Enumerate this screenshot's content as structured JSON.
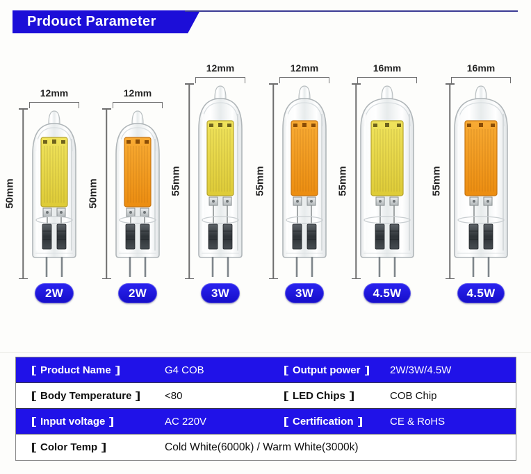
{
  "header": {
    "title": "Prdouct Parameter"
  },
  "bulbs": [
    {
      "width_label": "12mm",
      "height_label": "50mm",
      "watt_label": "2W",
      "tone": "cold"
    },
    {
      "width_label": "12mm",
      "height_label": "50mm",
      "watt_label": "2W",
      "tone": "warm"
    },
    {
      "width_label": "12mm",
      "height_label": "55mm",
      "watt_label": "3W",
      "tone": "cold"
    },
    {
      "width_label": "12mm",
      "height_label": "55mm",
      "watt_label": "3W",
      "tone": "warm"
    },
    {
      "width_label": "16mm",
      "height_label": "55mm",
      "watt_label": "4.5W",
      "tone": "cold"
    },
    {
      "width_label": "16mm",
      "height_label": "55mm",
      "watt_label": "4.5W",
      "tone": "warm"
    }
  ],
  "table": {
    "rows": [
      {
        "cells": [
          {
            "label": "【Product Name】",
            "value": "G4 COB"
          },
          {
            "label": "【Output power】",
            "value": "2W/3W/4.5W"
          }
        ]
      },
      {
        "cells": [
          {
            "label": "【Body Temperature】",
            "value": "<80"
          },
          {
            "label": "【LED Chips】",
            "value": "COB Chip"
          }
        ]
      },
      {
        "cells": [
          {
            "label": "【Input voltage】",
            "value": "AC 220V"
          },
          {
            "label": "【Certification】",
            "value": "CE & RoHS"
          }
        ]
      },
      {
        "cells": [
          {
            "label": "【Color Temp】",
            "value": "Cold White(6000k) / Warm White(3000k)"
          }
        ]
      }
    ]
  },
  "colors": {
    "header_blue": "#1c0ed8",
    "header_line": "#3b3b94",
    "table_blue": "#2012e8",
    "pill_blue_top": "#2b24f0",
    "pill_blue_bottom": "#150dc8",
    "cold": {
      "top": "#f0e35c",
      "bottom": "#decb37",
      "edge": "#b6a42b",
      "mark": "#6f631d"
    },
    "warm": {
      "top": "#f8ab34",
      "bottom": "#ec8d10",
      "edge": "#c67410",
      "mark": "#8a4d06"
    }
  }
}
